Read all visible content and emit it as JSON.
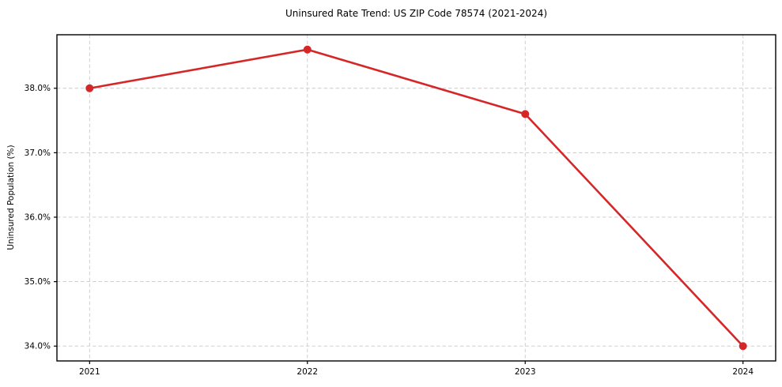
{
  "chart_data": {
    "type": "line",
    "title": "Uninsured Rate Trend: US ZIP Code 78574 (2021-2024)",
    "xlabel": "",
    "ylabel": "Uninsured Population (%)",
    "x": [
      2021,
      2022,
      2023,
      2024
    ],
    "x_tick_labels": [
      "2021",
      "2022",
      "2023",
      "2024"
    ],
    "series": [
      {
        "name": "Uninsured Population (%)",
        "values": [
          38.0,
          38.6,
          37.6,
          34.0
        ]
      }
    ],
    "y_ticks": [
      34.0,
      35.0,
      36.0,
      37.0,
      38.0
    ],
    "y_tick_labels": [
      "34.0%",
      "35.0%",
      "36.0%",
      "37.0%",
      "38.0%"
    ],
    "xlim": [
      2020.85,
      2024.15
    ],
    "ylim": [
      33.77,
      38.83
    ],
    "grid": "dashed",
    "legend_position": "none",
    "marker": "circle",
    "colors": {
      "line": "#d62728",
      "marker": "#d62728",
      "grid": "#c9c9c9",
      "spine": "#000000",
      "text": "#000000",
      "background": "#ffffff"
    }
  }
}
